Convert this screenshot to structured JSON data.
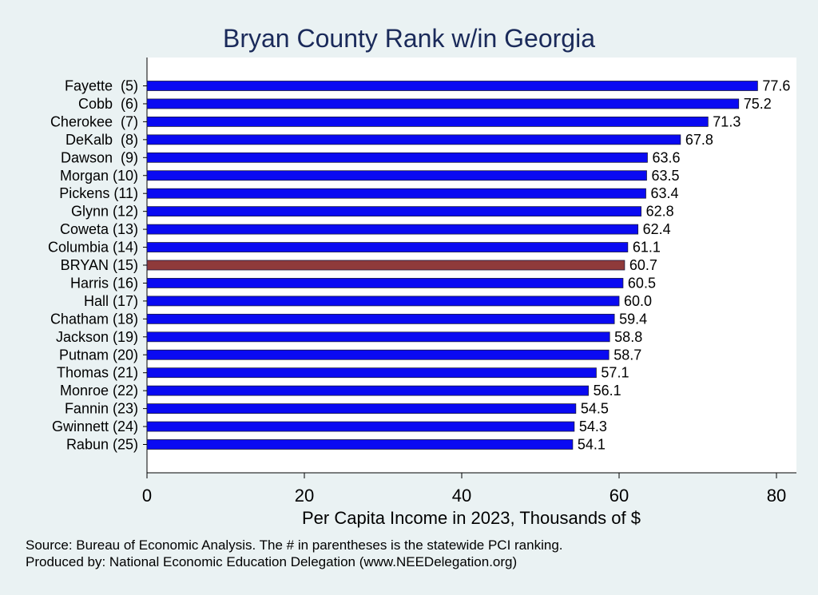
{
  "chart_data": {
    "type": "bar",
    "orientation": "horizontal",
    "title": "Bryan County Rank w/in Georgia",
    "xlabel": "Per Capita Income in 2023, Thousands of $",
    "xlim": [
      0,
      82
    ],
    "xticks": [
      "0",
      "20",
      "40",
      "60",
      "80"
    ],
    "grid": false,
    "categories": [
      "Fayette  (5)",
      "Cobb  (6)",
      "Cherokee  (7)",
      "DeKalb  (8)",
      "Dawson  (9)",
      "Morgan (10)",
      "Pickens (11)",
      "Glynn (12)",
      "Coweta (13)",
      "Columbia (14)",
      "BRYAN (15)",
      "Harris (16)",
      "Hall (17)",
      "Chatham (18)",
      "Jackson (19)",
      "Putnam (20)",
      "Thomas (21)",
      "Monroe (22)",
      "Fannin (23)",
      "Gwinnett (24)",
      "Rabun (25)"
    ],
    "values": [
      77.6,
      75.2,
      71.3,
      67.8,
      63.6,
      63.5,
      63.4,
      62.8,
      62.4,
      61.1,
      60.7,
      60.5,
      60.0,
      59.4,
      58.8,
      58.7,
      57.1,
      56.1,
      54.5,
      54.3,
      54.1
    ],
    "value_labels": [
      "77.6",
      "75.2",
      "71.3",
      "67.8",
      "63.6",
      "63.5",
      "63.4",
      "62.8",
      "62.4",
      "61.1",
      "60.7",
      "60.5",
      "60.0",
      "59.4",
      "58.8",
      "58.7",
      "57.1",
      "56.1",
      "54.5",
      "54.3",
      "54.1"
    ],
    "highlight_index": 10,
    "colors": {
      "bar": "#0a0af2",
      "highlight": "#8f3a3a",
      "title": "#1a2a5a",
      "plot_bg": "#ffffff",
      "page_bg": "#eaf2f3"
    }
  },
  "footer": {
    "source": "Source: Bureau of Economic Analysis. The # in parentheses is the statewide PCI ranking.",
    "producer": "Produced by: National Economic Education Delegation (www.NEEDelegation.org)"
  }
}
